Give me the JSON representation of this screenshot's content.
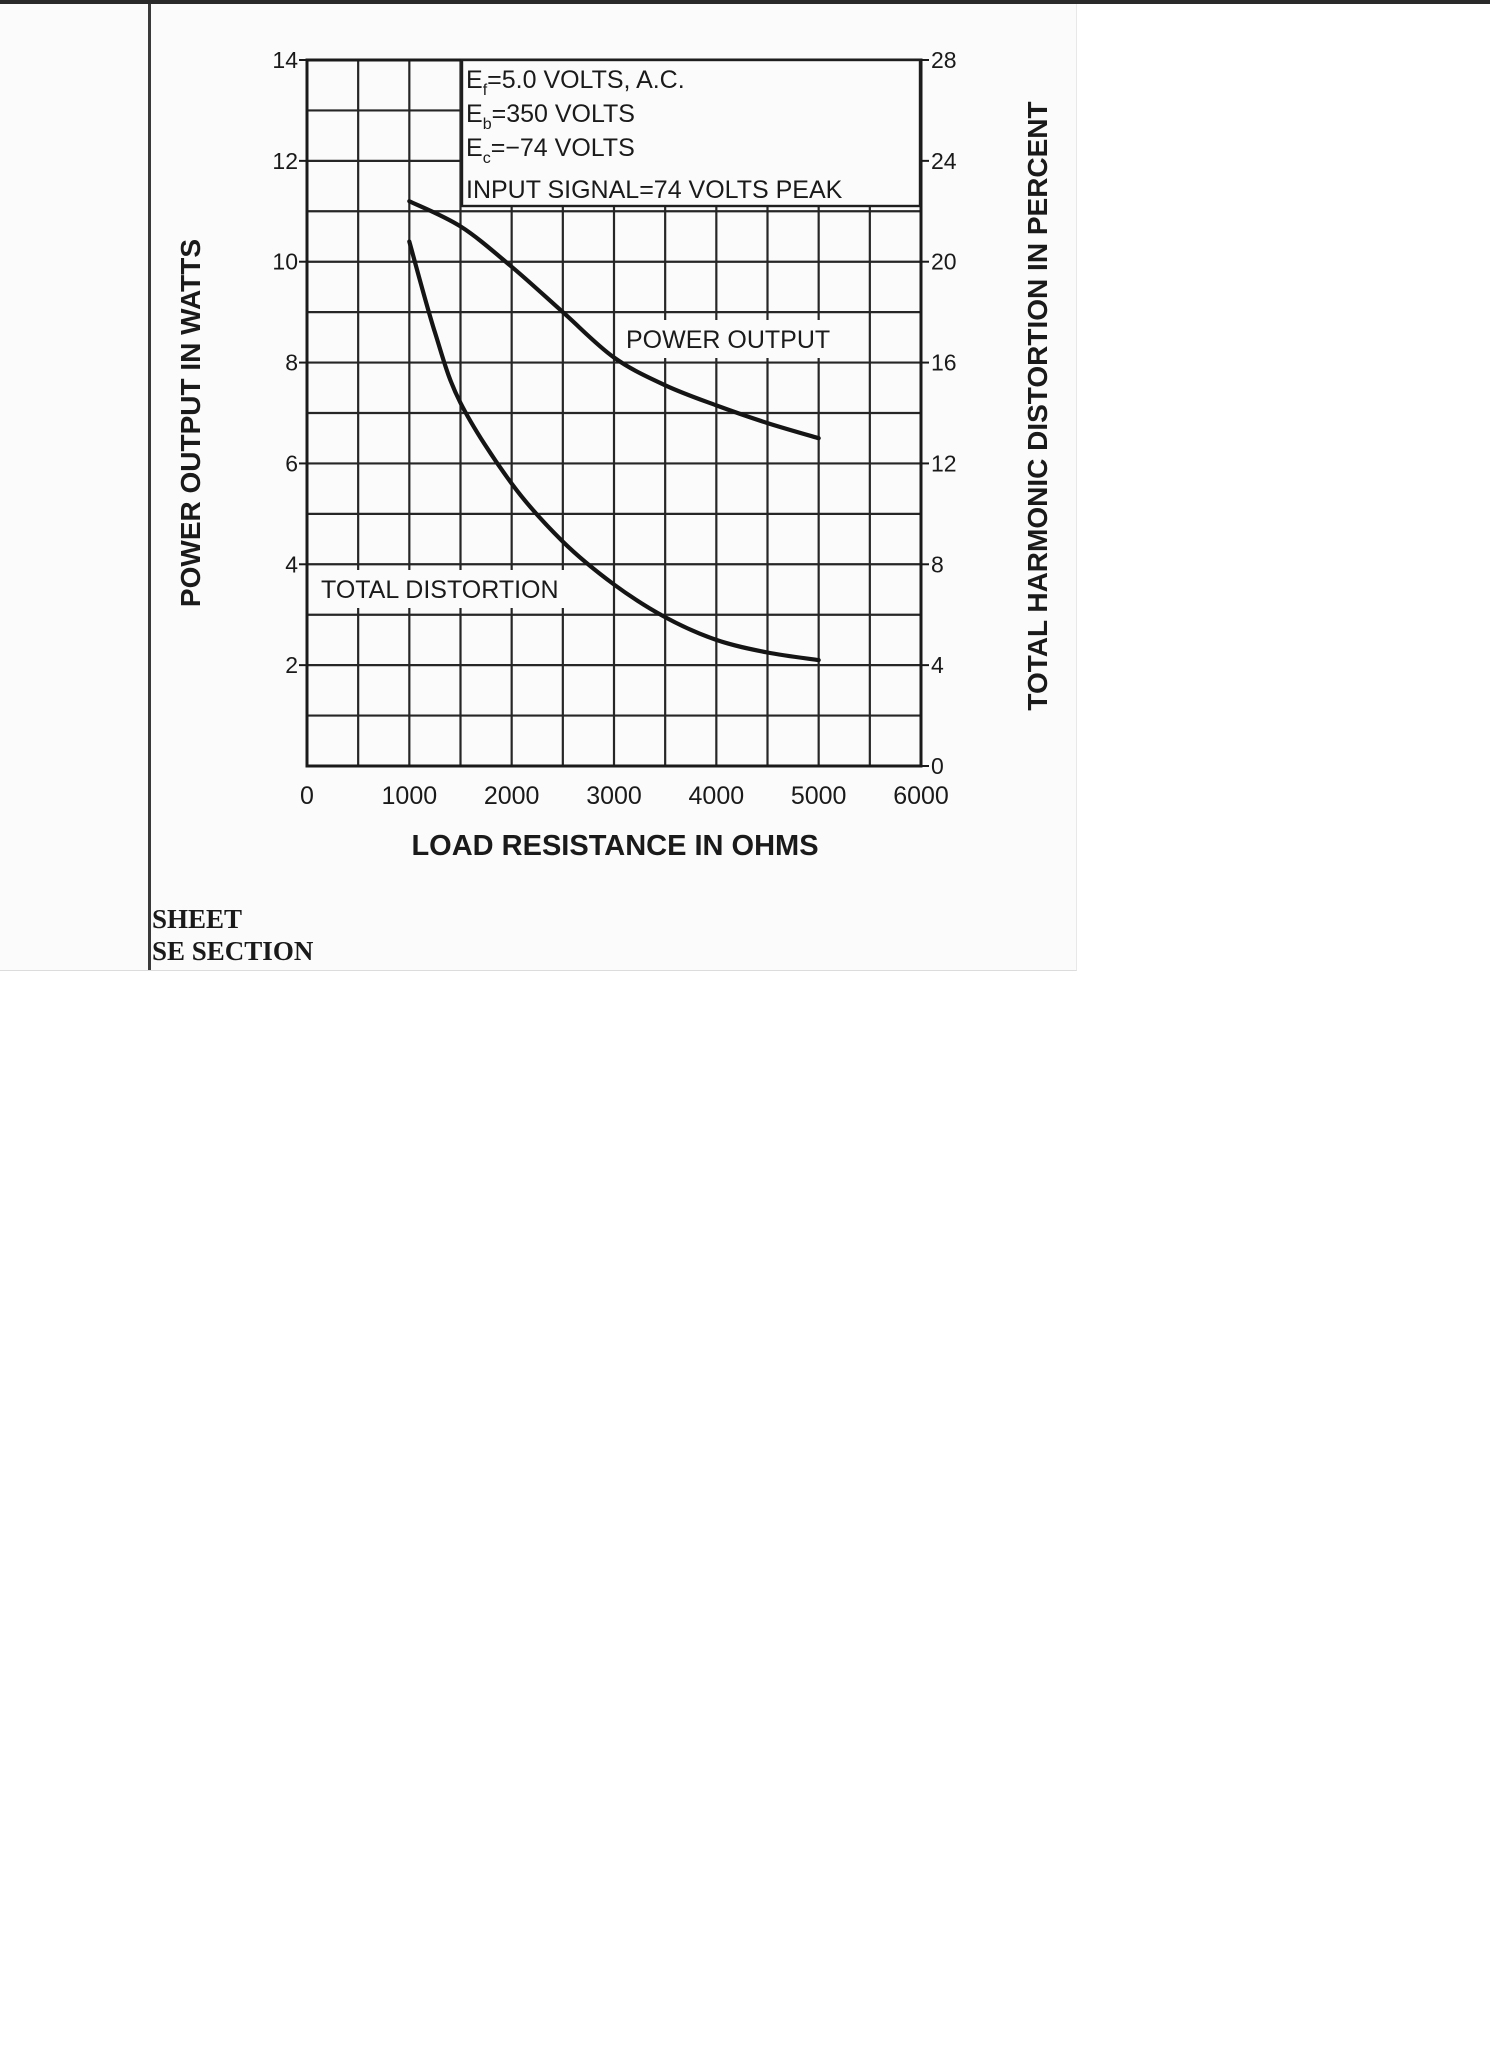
{
  "chart_data": {
    "type": "line",
    "title": "",
    "xlabel": "LOAD RESISTANCE IN OHMS",
    "ylabel": "POWER OUTPUT IN WATTS",
    "y2label": "TOTAL HARMONIC DISTORTION IN PERCENT",
    "xlim": [
      0,
      6000
    ],
    "ylim": [
      0,
      14
    ],
    "y2lim": [
      0,
      28
    ],
    "x_ticks": [
      "0",
      "1000",
      "2000",
      "3000",
      "4000",
      "5000",
      "6000"
    ],
    "y_ticks": [
      "2",
      "4",
      "6",
      "8",
      "10",
      "12",
      "14"
    ],
    "y2_ticks": [
      "0",
      "4",
      "8",
      "12",
      "16",
      "20",
      "24",
      "28"
    ],
    "grid": true,
    "conditions": [
      {
        "sym": "E",
        "sub": "f",
        "rest": "=5.0 VOLTS, A.C."
      },
      {
        "sym": "E",
        "sub": "b",
        "rest": "=350 VOLTS"
      },
      {
        "sym": "E",
        "sub": "c",
        "rest": "=−74 VOLTS"
      },
      {
        "sym": "",
        "sub": "",
        "rest": "INPUT SIGNAL=74 VOLTS PEAK"
      }
    ],
    "series": [
      {
        "name": "POWER OUTPUT",
        "axis": "left",
        "x": [
          1000,
          1500,
          2000,
          2500,
          3000,
          3500,
          4000,
          4500,
          5000
        ],
        "values": [
          11.2,
          10.7,
          9.9,
          9.0,
          8.1,
          7.55,
          7.15,
          6.8,
          6.5
        ]
      },
      {
        "name": "TOTAL DISTORTION",
        "axis": "right",
        "x": [
          1000,
          1250,
          1500,
          2000,
          2500,
          3000,
          3500,
          4000,
          4500,
          5000
        ],
        "values": [
          20.8,
          17.2,
          14.4,
          11.2,
          8.9,
          7.2,
          5.9,
          5.0,
          4.5,
          4.2
        ]
      }
    ]
  },
  "sheet_fragments": [
    "SHEET",
    "SE SECTION"
  ]
}
